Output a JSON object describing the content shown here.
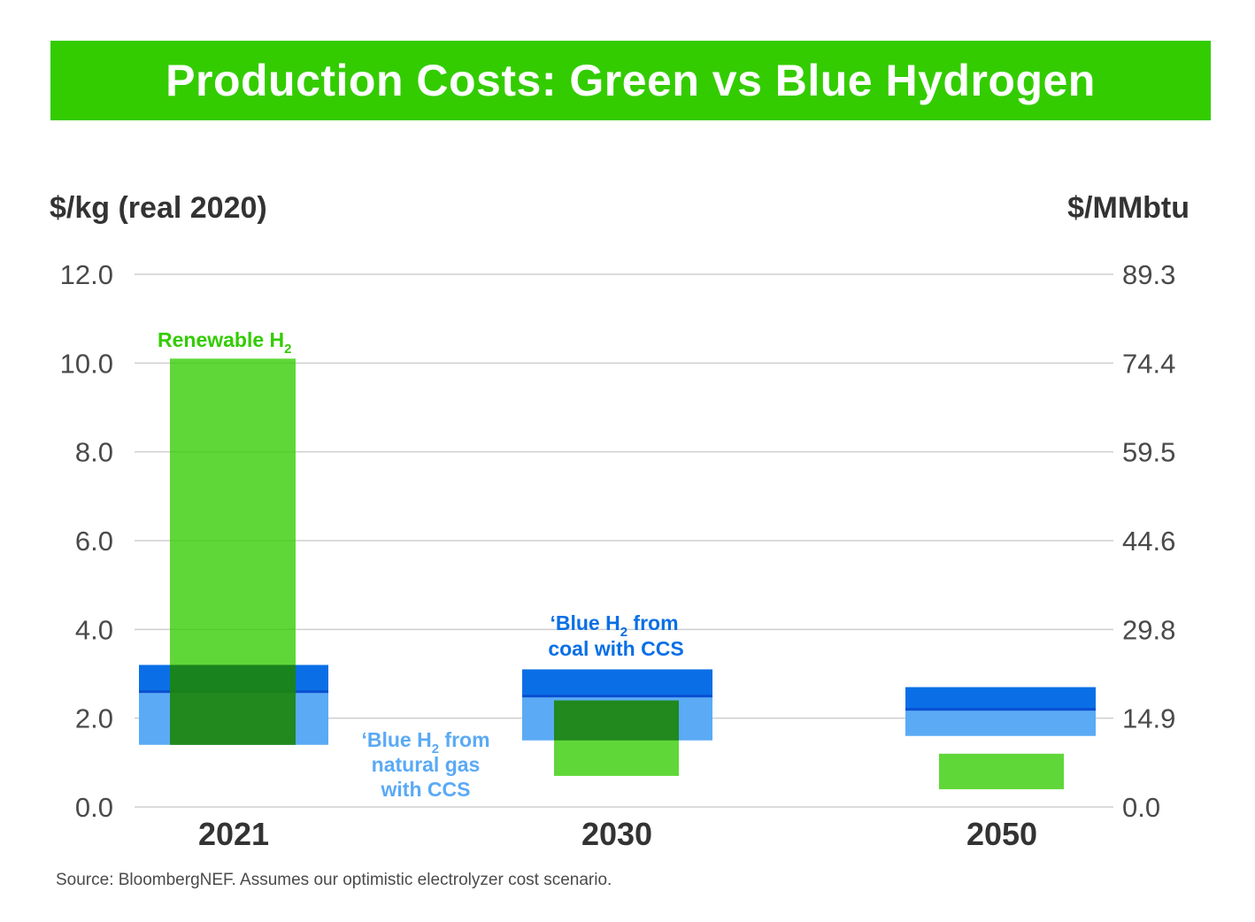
{
  "title": "Production Costs: Green vs Blue Hydrogen",
  "source": "Source: BloombergNEF. Assumes our optimistic electrolyzer cost scenario.",
  "colors": {
    "banner": "#33cc00",
    "renewable": "#33cc00",
    "coal_blue": "#0a6fe6",
    "gas_blue": "#5aaaf5",
    "overlap": "#1a8a1a"
  },
  "chart_data": {
    "type": "bar",
    "subtype": "floating-range",
    "title": "Production Costs: Green vs Blue Hydrogen",
    "ylabel": "$/kg (real 2020)",
    "y2label": "$/MMbtu",
    "ylim": [
      0,
      12
    ],
    "yticks": [
      "0.0",
      "2.0",
      "4.0",
      "6.0",
      "8.0",
      "10.0",
      "12.0"
    ],
    "y2ticks": [
      "0.0",
      "14.9",
      "29.8",
      "44.6",
      "59.5",
      "74.4",
      "89.3"
    ],
    "grid": true,
    "categories": [
      "2021",
      "2030",
      "2050"
    ],
    "series": [
      {
        "name": "‘Blue H2 from natural gas with CCS",
        "color": "#5aaaf5",
        "ranges": [
          [
            1.4,
            2.6
          ],
          [
            1.5,
            2.5
          ],
          [
            1.6,
            2.3
          ]
        ]
      },
      {
        "name": "‘Blue H2 from coal with CCS",
        "color": "#0a6fe6",
        "ranges": [
          [
            2.6,
            3.2
          ],
          [
            2.5,
            3.1
          ],
          [
            2.2,
            2.7
          ]
        ]
      },
      {
        "name": "Renewable H2",
        "color": "#33cc00",
        "ranges": [
          [
            1.4,
            10.1
          ],
          [
            0.7,
            2.4
          ],
          [
            0.4,
            1.2
          ]
        ]
      }
    ],
    "annotations": {
      "renewable": {
        "text": "Renewable H",
        "sub": "2"
      },
      "coal": {
        "line1_pre": "‘Blue H",
        "line1_sub": "2",
        "line1_post": " from",
        "line2": "coal with CCS"
      },
      "gas": {
        "line1_pre": "‘Blue H",
        "line1_sub": "2",
        "line1_post": " from",
        "line2": "natural gas",
        "line3": "with CCS"
      }
    }
  },
  "axis_units": {
    "left": "$/kg (real 2020)",
    "right": "$/MMbtu"
  }
}
